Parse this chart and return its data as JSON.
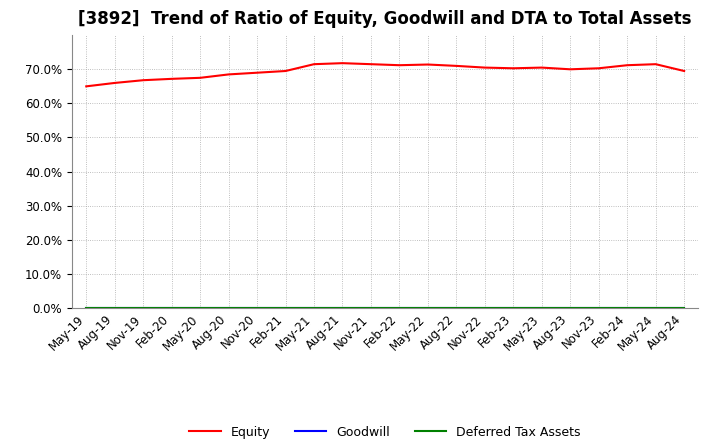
{
  "title": "[3892]  Trend of Ratio of Equity, Goodwill and DTA to Total Assets",
  "background_color": "#ffffff",
  "plot_background_color": "#ffffff",
  "grid_color": "#aaaaaa",
  "x_labels": [
    "May-19",
    "Aug-19",
    "Nov-19",
    "Feb-20",
    "May-20",
    "Aug-20",
    "Nov-20",
    "Feb-21",
    "May-21",
    "Aug-21",
    "Nov-21",
    "Feb-22",
    "May-22",
    "Aug-22",
    "Nov-22",
    "Feb-23",
    "May-23",
    "Aug-23",
    "Nov-23",
    "Feb-24",
    "May-24",
    "Aug-24"
  ],
  "equity_values": [
    0.65,
    0.66,
    0.668,
    0.672,
    0.675,
    0.685,
    0.69,
    0.695,
    0.715,
    0.718,
    0.715,
    0.712,
    0.714,
    0.71,
    0.705,
    0.703,
    0.705,
    0.7,
    0.703,
    0.712,
    0.715,
    0.695
  ],
  "goodwill_values": [
    0.0,
    0.0,
    0.0,
    0.0,
    0.0,
    0.0,
    0.0,
    0.0,
    0.0,
    0.0,
    0.0,
    0.0,
    0.0,
    0.0,
    0.0,
    0.0,
    0.0,
    0.0,
    0.0,
    0.0,
    0.0,
    0.0
  ],
  "dta_values": [
    0.0,
    0.0,
    0.0,
    0.0,
    0.0,
    0.0,
    0.0,
    0.0,
    0.0,
    0.0,
    0.0,
    0.0,
    0.0,
    0.0,
    0.0,
    0.0,
    0.0,
    0.0,
    0.0,
    0.0,
    0.0,
    0.0
  ],
  "equity_color": "#ff0000",
  "goodwill_color": "#0000ff",
  "dta_color": "#008000",
  "ylim": [
    0.0,
    0.8
  ],
  "yticks": [
    0.0,
    0.1,
    0.2,
    0.3,
    0.4,
    0.5,
    0.6,
    0.7
  ],
  "legend_labels": [
    "Equity",
    "Goodwill",
    "Deferred Tax Assets"
  ],
  "title_fontsize": 12,
  "tick_fontsize": 8.5
}
